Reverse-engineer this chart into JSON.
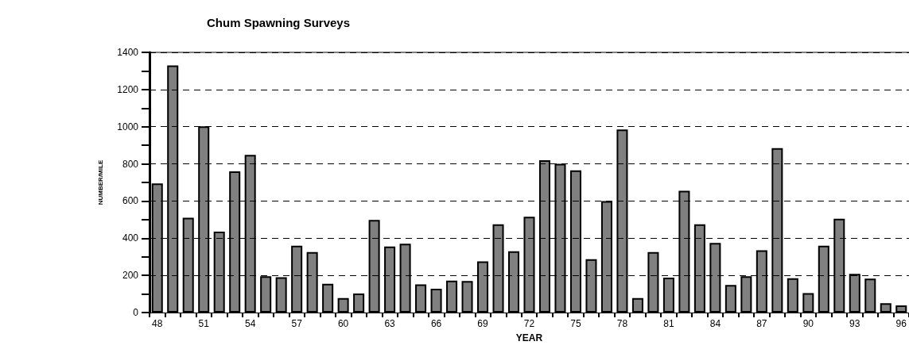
{
  "chart_data": {
    "type": "bar",
    "title": "Chum Spawning Surveys",
    "xlabel": "YEAR",
    "ylabel": "NUMBER/MILE",
    "categories": [
      "48",
      null,
      null,
      "51",
      null,
      null,
      "54",
      null,
      null,
      "57",
      null,
      null,
      "60",
      null,
      null,
      "63",
      null,
      null,
      "66",
      null,
      null,
      "69",
      null,
      null,
      "72",
      null,
      null,
      "75",
      null,
      null,
      "78",
      null,
      null,
      "81",
      null,
      null,
      "84",
      null,
      null,
      "87",
      null,
      null,
      "90",
      null,
      null,
      "93",
      null,
      null,
      "96"
    ],
    "values": [
      695,
      1330,
      510,
      1002,
      435,
      760,
      848,
      195,
      190,
      360,
      325,
      155,
      78,
      102,
      498,
      355,
      370,
      152,
      128,
      172,
      170,
      275,
      475,
      330,
      515,
      820,
      800,
      765,
      287,
      600,
      985,
      78,
      325,
      188,
      655,
      475,
      375,
      148,
      195,
      335,
      885,
      185,
      105,
      360,
      505,
      208,
      183,
      50,
      38
    ],
    "color": "#808080",
    "ylim": [
      0,
      1400
    ],
    "yticks": [
      0,
      {
        "value": 100,
        "label": null
      },
      200,
      {
        "value": 300,
        "label": null
      },
      400,
      {
        "value": 500,
        "label": null
      },
      600,
      {
        "value": 700,
        "label": null
      },
      800,
      {
        "value": 900,
        "label": null
      },
      1000,
      {
        "value": 1100,
        "label": null
      },
      1200,
      {
        "value": 1300,
        "label": null
      },
      1400
    ],
    "grid": "y"
  }
}
